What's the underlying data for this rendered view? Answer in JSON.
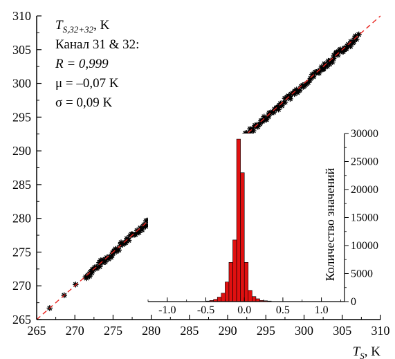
{
  "chart_data": [
    {
      "type": "scatter",
      "xlabel": "T_S, K",
      "ylabel": "T_S,32+32, K",
      "xlim": [
        265,
        310
      ],
      "ylim": [
        265,
        310
      ],
      "x_ticks": [
        "265",
        "270",
        "275",
        "280",
        "285",
        "290",
        "295",
        "300",
        "305",
        "310"
      ],
      "y_ticks": [
        "265",
        "270",
        "275",
        "280",
        "285",
        "290",
        "295",
        "300",
        "305",
        "310"
      ],
      "marker": "asterisk",
      "marker_color": "#000000",
      "reference_line": {
        "style": "dashed",
        "color": "#e8231e",
        "from": [
          265,
          265
        ],
        "to": [
          310,
          310
        ]
      },
      "annotation": {
        "var_main": "T",
        "var_sub": "S,32+32",
        "var_unit": ", K",
        "line2": "Канал 31 & 32:",
        "line3": "R = 0,999",
        "line4": "μ = –0,07 K",
        "line5": "σ = 0,09 K"
      },
      "x_axis_title": {
        "main": "T",
        "sub": "S",
        "unit": ", K"
      },
      "x_range_of_points": [
        266.7,
        307.1
      ],
      "outlier_points": [
        [
          266.7,
          266.7
        ],
        [
          268.6,
          268.6
        ],
        [
          270.1,
          270.2
        ]
      ]
    },
    {
      "type": "bar",
      "title": "",
      "ylabel": "Количество значений",
      "xlim": [
        -1.25,
        1.3
      ],
      "ylim": [
        0,
        30000
      ],
      "x_ticks": [
        "-1.0",
        "-0.5",
        "0.0",
        "0.5",
        "1.0"
      ],
      "y_ticks": [
        "0",
        "5000",
        "10000",
        "15000",
        "20000",
        "25000",
        "30000"
      ],
      "bar_color": "#e01010",
      "bin_width": 0.05,
      "bin_centers": [
        -0.475,
        -0.425,
        -0.375,
        -0.325,
        -0.275,
        -0.225,
        -0.175,
        -0.125,
        -0.075,
        -0.025,
        0.025,
        0.075,
        0.125,
        0.175,
        0.225,
        0.275,
        0.325
      ],
      "values": [
        100,
        200,
        400,
        800,
        1500,
        3500,
        7000,
        11000,
        29000,
        23000,
        7000,
        2000,
        900,
        500,
        200,
        150,
        100
      ]
    }
  ]
}
